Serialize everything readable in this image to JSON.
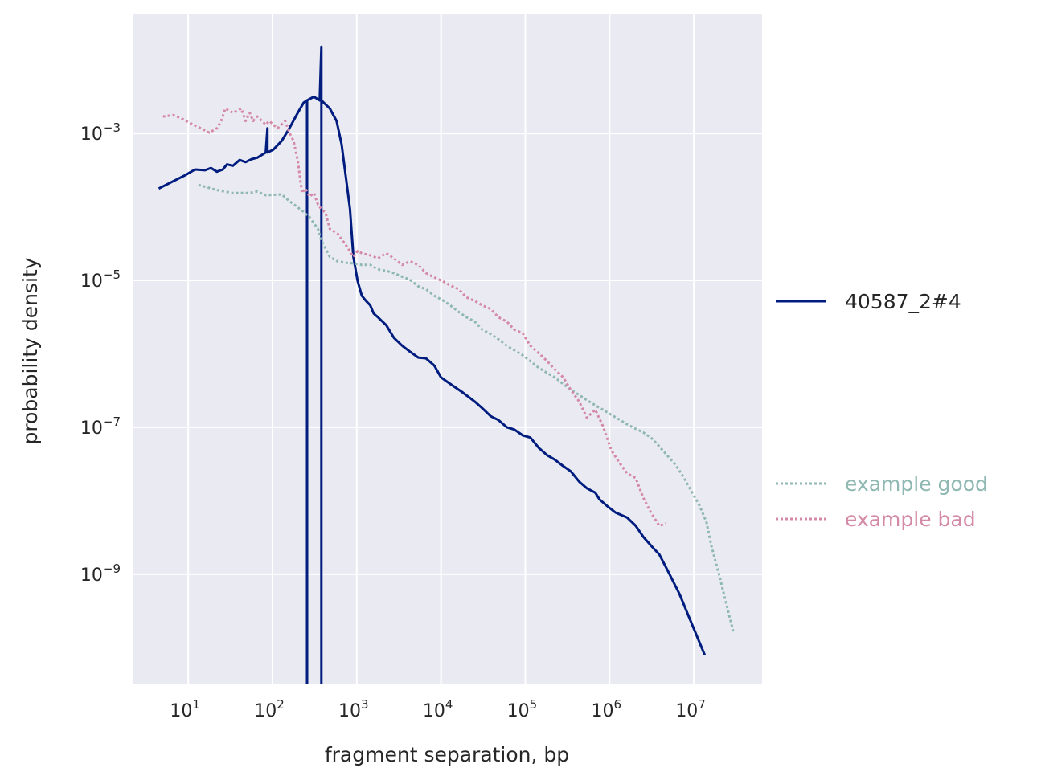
{
  "chart_data": {
    "type": "line",
    "scale": "log-log",
    "xlabel": "fragment separation, bp",
    "ylabel": "probability density",
    "xlim_log10": [
      0.34,
      7.81
    ],
    "ylim_log10": [
      -10.5,
      -1.38
    ],
    "grid": true,
    "legend_placement": "right-outside",
    "xticks": [
      {
        "base": "10",
        "exp": "1",
        "log10": 1
      },
      {
        "base": "10",
        "exp": "2",
        "log10": 2
      },
      {
        "base": "10",
        "exp": "3",
        "log10": 3
      },
      {
        "base": "10",
        "exp": "4",
        "log10": 4
      },
      {
        "base": "10",
        "exp": "5",
        "log10": 5
      },
      {
        "base": "10",
        "exp": "6",
        "log10": 6
      },
      {
        "base": "10",
        "exp": "7",
        "log10": 7
      }
    ],
    "yticks": [
      {
        "base": "10",
        "exp": "−3",
        "log10": -3
      },
      {
        "base": "10",
        "exp": "−5",
        "log10": -5
      },
      {
        "base": "10",
        "exp": "−7",
        "log10": -7
      },
      {
        "base": "10",
        "exp": "−9",
        "log10": -9
      }
    ],
    "series": [
      {
        "name": "40587_2#4",
        "color": "#001c7f",
        "style": "solid",
        "x_log10": [
          0.65,
          0.96,
          1.08,
          1.2,
          1.27,
          1.34,
          1.41,
          1.46,
          1.53,
          1.61,
          1.68,
          1.75,
          1.82,
          1.92,
          1.94,
          1.94,
          2.01,
          2.11,
          2.2,
          2.3,
          2.37,
          2.41,
          2.41,
          2.41,
          2.49,
          2.56,
          2.58,
          2.58,
          2.58,
          2.68,
          2.76,
          2.82,
          2.87,
          2.92,
          2.96,
          3.01,
          3.06,
          3.11,
          3.16,
          3.2,
          3.25,
          3.35,
          3.44,
          3.54,
          3.63,
          3.73,
          3.82,
          3.92,
          4.0,
          4.11,
          4.25,
          4.4,
          4.49,
          4.59,
          4.68,
          4.78,
          4.87,
          4.97,
          5.06,
          5.16,
          5.26,
          5.35,
          5.44,
          5.54,
          5.64,
          5.73,
          5.83,
          5.88,
          5.97,
          6.07,
          6.21,
          6.31,
          6.4,
          6.5,
          6.59,
          6.69,
          6.83,
          6.97,
          7.13
        ],
        "y_log10": [
          -3.75,
          -3.57,
          -3.49,
          -3.5,
          -3.47,
          -3.52,
          -3.49,
          -3.42,
          -3.44,
          -3.36,
          -3.39,
          -3.35,
          -3.33,
          -3.26,
          -2.93,
          -3.26,
          -3.22,
          -3.1,
          -2.93,
          -2.72,
          -2.58,
          -2.55,
          -10.5,
          -2.55,
          -2.5,
          -2.55,
          -1.82,
          -10.5,
          -2.55,
          -2.66,
          -2.83,
          -3.15,
          -3.59,
          -4.03,
          -4.68,
          -5.01,
          -5.21,
          -5.28,
          -5.34,
          -5.45,
          -5.5,
          -5.61,
          -5.78,
          -5.89,
          -5.97,
          -6.05,
          -6.06,
          -6.16,
          -6.32,
          -6.41,
          -6.52,
          -6.65,
          -6.74,
          -6.85,
          -6.9,
          -7.0,
          -7.03,
          -7.11,
          -7.14,
          -7.28,
          -7.38,
          -7.44,
          -7.52,
          -7.6,
          -7.74,
          -7.83,
          -7.89,
          -7.98,
          -8.07,
          -8.16,
          -8.23,
          -8.34,
          -8.49,
          -8.62,
          -8.73,
          -8.95,
          -9.27,
          -9.66,
          -10.1
        ]
      },
      {
        "name": "example good",
        "color": "#8fb8b2",
        "style": "dotted",
        "x_log10": [
          1.12,
          1.34,
          1.53,
          1.73,
          1.82,
          1.92,
          2.11,
          2.2,
          2.35,
          2.44,
          2.54,
          2.58,
          2.68,
          2.77,
          2.87,
          2.96,
          3.06,
          3.16,
          3.25,
          3.35,
          3.44,
          3.54,
          3.63,
          3.73,
          3.82,
          3.92,
          4.02,
          4.11,
          4.21,
          4.3,
          4.4,
          4.49,
          4.59,
          4.68,
          4.78,
          4.87,
          4.97,
          5.06,
          5.16,
          5.26,
          5.35,
          5.45,
          5.54,
          5.64,
          5.73,
          5.83,
          5.92,
          6.02,
          6.11,
          6.21,
          6.31,
          6.4,
          6.5,
          6.59,
          6.69,
          6.79,
          6.88,
          6.97,
          7.07,
          7.15,
          7.21,
          7.31,
          7.4,
          7.47
        ],
        "y_log10": [
          -3.7,
          -3.77,
          -3.81,
          -3.81,
          -3.79,
          -3.84,
          -3.83,
          -3.92,
          -4.05,
          -4.14,
          -4.3,
          -4.46,
          -4.68,
          -4.74,
          -4.76,
          -4.77,
          -4.79,
          -4.79,
          -4.85,
          -4.87,
          -4.9,
          -4.95,
          -4.99,
          -5.08,
          -5.12,
          -5.21,
          -5.27,
          -5.34,
          -5.43,
          -5.5,
          -5.56,
          -5.67,
          -5.73,
          -5.8,
          -5.89,
          -5.95,
          -6.02,
          -6.1,
          -6.19,
          -6.26,
          -6.32,
          -6.41,
          -6.49,
          -6.56,
          -6.63,
          -6.7,
          -6.76,
          -6.83,
          -6.89,
          -6.96,
          -7.02,
          -7.07,
          -7.15,
          -7.26,
          -7.39,
          -7.52,
          -7.68,
          -7.87,
          -8.07,
          -8.29,
          -8.62,
          -9.05,
          -9.47,
          -9.79
        ]
      },
      {
        "name": "example bad",
        "color": "#d48aa6",
        "style": "dotted",
        "x_log10": [
          0.7,
          0.82,
          0.91,
          1.06,
          1.15,
          1.25,
          1.34,
          1.39,
          1.44,
          1.53,
          1.63,
          1.68,
          1.73,
          1.77,
          1.82,
          1.92,
          1.96,
          2.06,
          2.15,
          2.2,
          2.25,
          2.3,
          2.35,
          2.39,
          2.44,
          2.49,
          2.54,
          2.58,
          2.63,
          2.68,
          2.77,
          2.87,
          2.96,
          3.01,
          3.06,
          3.16,
          3.25,
          3.35,
          3.44,
          3.54,
          3.63,
          3.73,
          3.82,
          3.92,
          4.02,
          4.11,
          4.21,
          4.3,
          4.4,
          4.49,
          4.59,
          4.68,
          4.78,
          4.87,
          4.97,
          5.06,
          5.16,
          5.26,
          5.35,
          5.45,
          5.54,
          5.64,
          5.73,
          5.83,
          5.92,
          6.02,
          6.11,
          6.21,
          6.31,
          6.4,
          6.5,
          6.59,
          6.67
        ],
        "y_log10": [
          -2.77,
          -2.75,
          -2.79,
          -2.88,
          -2.93,
          -2.99,
          -2.93,
          -2.83,
          -2.66,
          -2.72,
          -2.66,
          -2.83,
          -2.72,
          -2.83,
          -2.77,
          -2.88,
          -2.83,
          -2.93,
          -2.83,
          -2.99,
          -3.1,
          -3.37,
          -3.81,
          -3.75,
          -3.86,
          -3.81,
          -3.97,
          -4.03,
          -4.08,
          -4.3,
          -4.36,
          -4.52,
          -4.68,
          -4.6,
          -4.63,
          -4.66,
          -4.7,
          -4.63,
          -4.7,
          -4.79,
          -4.74,
          -4.79,
          -4.9,
          -4.96,
          -5.01,
          -5.07,
          -5.12,
          -5.23,
          -5.28,
          -5.34,
          -5.39,
          -5.5,
          -5.56,
          -5.67,
          -5.72,
          -5.89,
          -5.99,
          -6.1,
          -6.21,
          -6.32,
          -6.49,
          -6.65,
          -6.87,
          -6.76,
          -6.98,
          -7.31,
          -7.47,
          -7.63,
          -7.69,
          -7.96,
          -8.18,
          -8.34,
          -8.31
        ]
      }
    ]
  }
}
